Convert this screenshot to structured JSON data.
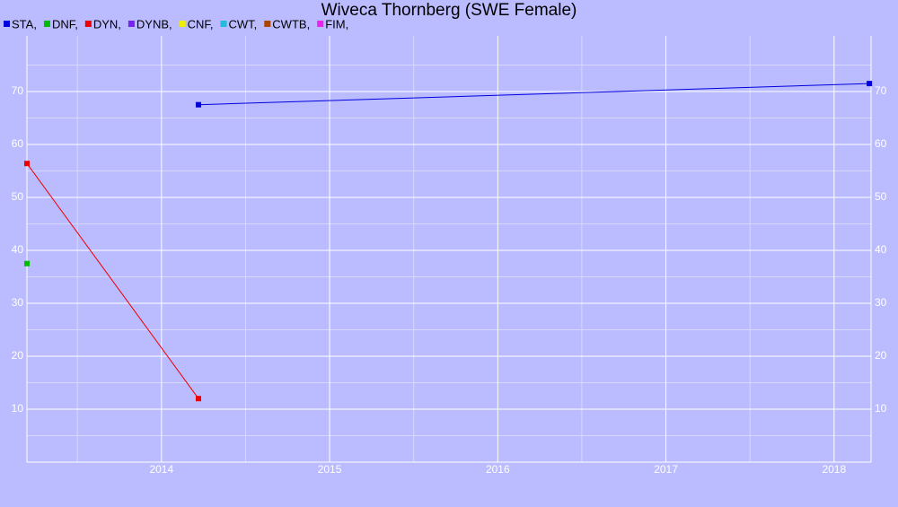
{
  "chart_data": {
    "type": "line",
    "title": "Wiveca Thornberg (SWE Female)",
    "xlim": [
      2013.2,
      2018.22
    ],
    "xticks": [
      2014,
      2015,
      2016,
      2017,
      2018
    ],
    "ylim": [
      0,
      80.5
    ],
    "yticks": [
      10,
      20,
      30,
      40,
      50,
      60,
      70
    ],
    "grid": true,
    "series": [
      {
        "name": "STA,",
        "color": "#0000dd",
        "x": [
          2014.22,
          2018.21
        ],
        "values": [
          67.5,
          71.5
        ]
      },
      {
        "name": "DNF,",
        "color": "#00bb00",
        "x": [
          2013.2
        ],
        "values": [
          37.5
        ]
      },
      {
        "name": "DYN,",
        "color": "#ee0000",
        "x": [
          2013.2,
          2014.22
        ],
        "values": [
          56.4,
          12
        ]
      },
      {
        "name": "DYNB,",
        "color": "#7722ee",
        "x": [],
        "values": []
      },
      {
        "name": "CNF,",
        "color": "#eeee00",
        "x": [],
        "values": []
      },
      {
        "name": "CWT,",
        "color": "#22bbdd",
        "x": [],
        "values": []
      },
      {
        "name": "CWTB,",
        "color": "#aa4400",
        "x": [],
        "values": []
      },
      {
        "name": "FIM,",
        "color": "#ee22ee",
        "x": [],
        "values": []
      }
    ]
  }
}
